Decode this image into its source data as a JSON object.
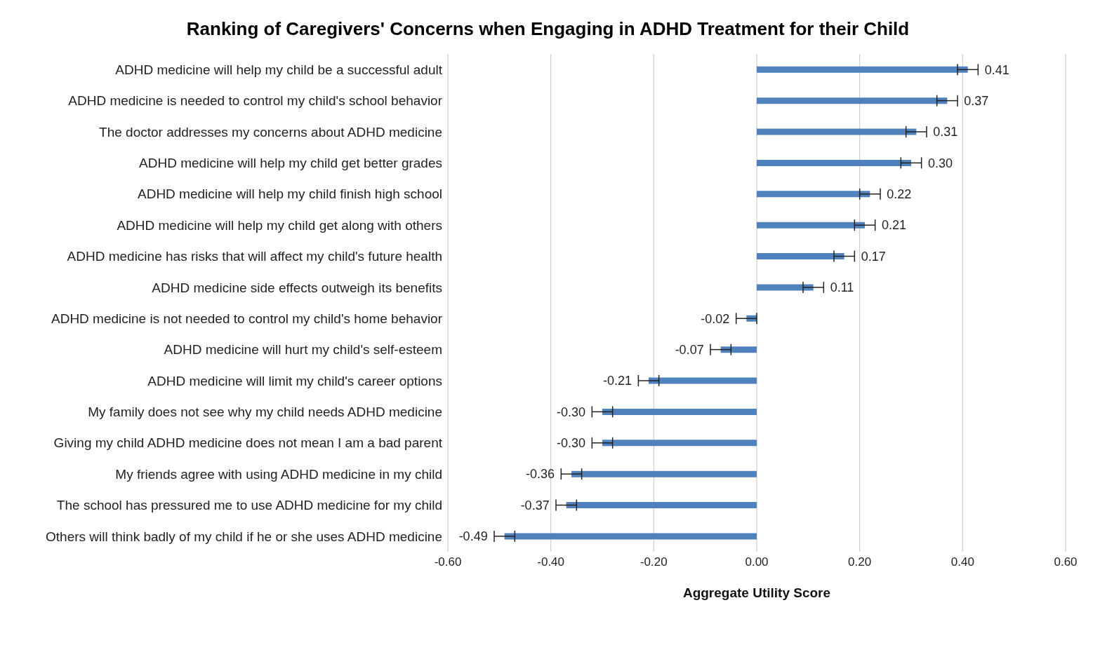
{
  "chart_data": {
    "type": "bar",
    "orientation": "horizontal",
    "title": "Ranking of Caregivers' Concerns when Engaging in ADHD Treatment for their Child",
    "xlabel": "Aggregate Utility Score",
    "categories": [
      "ADHD medicine will help my child be a successful adult",
      "ADHD medicine is needed to control my child's school behavior",
      "The doctor addresses my concerns about ADHD medicine",
      "ADHD medicine will help my child get better grades",
      "ADHD medicine will help my child finish high school",
      "ADHD medicine will help my child get along with others",
      "ADHD medicine has risks that will affect my child's future health",
      "ADHD medicine side effects outweigh its benefits",
      "ADHD medicine is not needed to control my child's home behavior",
      "ADHD medicine will hurt my child's self-esteem",
      "ADHD medicine will limit my child's career options",
      "My family does not see why my child needs ADHD medicine",
      "Giving my child ADHD medicine does not mean I am a bad parent",
      "My friends agree with using ADHD medicine in my child",
      "The school has pressured me to use ADHD medicine for my child",
      "Others will think badly of my child if he or she uses ADHD medicine"
    ],
    "values": [
      0.41,
      0.37,
      0.31,
      0.3,
      0.22,
      0.21,
      0.17,
      0.11,
      -0.02,
      -0.07,
      -0.21,
      -0.3,
      -0.3,
      -0.36,
      -0.37,
      -0.49
    ],
    "value_labels": [
      "0.41",
      "0.37",
      "0.31",
      "0.30",
      "0.22",
      "0.21",
      "0.17",
      "0.11",
      "-0.02",
      "-0.07",
      "-0.21",
      "-0.30",
      "-0.30",
      "-0.36",
      "-0.37",
      "-0.49"
    ],
    "errors": [
      0.02,
      0.02,
      0.02,
      0.02,
      0.02,
      0.02,
      0.02,
      0.02,
      0.02,
      0.02,
      0.02,
      0.02,
      0.02,
      0.02,
      0.02,
      0.02
    ],
    "color": "#4f81bd",
    "xlim": [
      -0.6,
      0.6
    ],
    "xticks": [
      {
        "value": -0.6,
        "label": "-0.60"
      },
      {
        "value": -0.4,
        "label": "-0.40"
      },
      {
        "value": -0.2,
        "label": "-0.20"
      },
      {
        "value": 0,
        "label": "0.00"
      },
      {
        "value": 0.2,
        "label": "0.20"
      },
      {
        "value": 0.4,
        "label": "0.40"
      },
      {
        "value": 0.6,
        "label": "0.60"
      }
    ],
    "grid": "x"
  }
}
